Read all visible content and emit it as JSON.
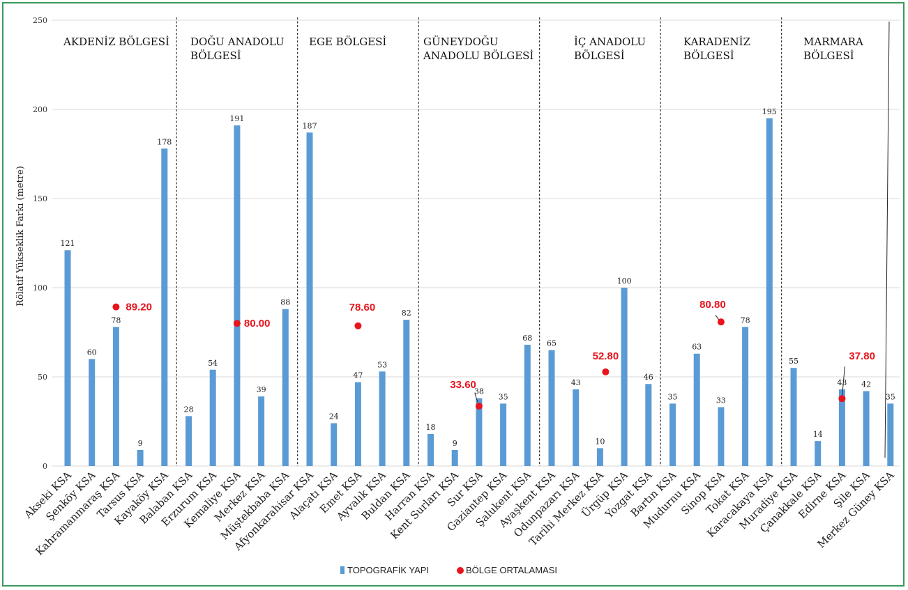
{
  "chart_data": {
    "type": "bar",
    "ylabel": "Rölatif Yükseklik Farkı (metre)",
    "xlabel": "",
    "ylim": [
      0,
      250
    ],
    "yticks": [
      0,
      50,
      100,
      150,
      200,
      250
    ],
    "grid": true,
    "legend_position": "bottom",
    "colors": {
      "bar": "#5b9bd5",
      "avg": "#e8141c",
      "divider": "#333333"
    },
    "categories": [
      "Akseki KSA",
      "Şenköy KSA",
      "Kahramanmaraş KSA",
      "Tarsus KSA",
      "Kayaköy KSA",
      "Balaban KSA",
      "Erzurum KSA",
      "Kemaliye KSA",
      "Merkez KSA",
      "Müştekbaba KSA",
      "Afyonkarahisar KSA",
      "Alaçatı KSA",
      "Emet KSA",
      "Ayvalık KSA",
      "Buldan KSA",
      "Harran KSA",
      "Kent Surları KSA",
      "Sur KSA",
      "Gaziantep KSA",
      "Şalukent KSA",
      "Ayaşkent KSA",
      "Odunpazarı KSA",
      "Tarihi Merkez KSA",
      "Ürgüp KSA",
      "Yozgat KSA",
      "Bartın KSA",
      "Mudurnu KSA",
      "Sinop KSA",
      "Tokat KSA",
      "Karacakaya KSA",
      "Muradiye KSA",
      "Çanakkale KSA",
      "Edirne KSA",
      "Şile KSA",
      "Merkez Güney KSA"
    ],
    "series": [
      {
        "name": "TOPOGRAFİK YAPI",
        "values": [
          121,
          60,
          78,
          9,
          178,
          28,
          54,
          191,
          39,
          88,
          187,
          24,
          47,
          53,
          82,
          18,
          9,
          38,
          35,
          68,
          65,
          43,
          10,
          100,
          46,
          35,
          63,
          33,
          78,
          195,
          55,
          14,
          43,
          42,
          35
        ]
      }
    ],
    "value_labels": [
      "121",
      "60",
      "78",
      "9",
      "178",
      "28",
      "54",
      "191",
      "39",
      "88",
      "187",
      "24",
      "47",
      "53",
      "82",
      "18",
      "9",
      "38",
      "35",
      "68",
      "65",
      "43",
      "10",
      "100",
      "46",
      "35",
      "63",
      "33",
      "78",
      "195",
      "55",
      "14",
      "43",
      "42",
      "35"
    ],
    "regions": [
      {
        "label": "AKDENİZ BÖLGESİ",
        "lines": [
          "AKDENİZ BÖLGESİ"
        ],
        "start": 0,
        "end": 4,
        "average": 89.2,
        "average_label": "89.20"
      },
      {
        "label": "DOĞU ANADOLU BÖLGESİ",
        "lines": [
          "DOĞU ANADOLU",
          "BÖLGESİ"
        ],
        "start": 5,
        "end": 9,
        "average": 80.0,
        "average_label": "80.00"
      },
      {
        "label": "EGE BÖLGESİ",
        "lines": [
          "EGE BÖLGESİ"
        ],
        "start": 10,
        "end": 14,
        "average": 78.6,
        "average_label": "78.60"
      },
      {
        "label": "GÜNEYDOĞU ANADOLU BÖLGESİ",
        "lines": [
          "GÜNEYDOĞU",
          "ANADOLU BÖLGESİ"
        ],
        "start": 15,
        "end": 19,
        "average": 33.6,
        "average_label": "33.60"
      },
      {
        "label": "İÇ ANADOLU BÖLGESİ",
        "lines": [
          "İÇ ANADOLU",
          "BÖLGESİ"
        ],
        "start": 20,
        "end": 24,
        "average": 52.8,
        "average_label": "52.80"
      },
      {
        "label": "KARADENİZ BÖLGESİ",
        "lines": [
          "KARADENİZ",
          "BÖLGESİ"
        ],
        "start": 25,
        "end": 29,
        "average": 80.8,
        "average_label": "80.80"
      },
      {
        "label": "MARMARA BÖLGESİ",
        "lines": [
          "MARMARA",
          "BÖLGESİ"
        ],
        "start": 30,
        "end": 34,
        "average": 37.8,
        "average_label": "37.80"
      }
    ],
    "legend": [
      {
        "label": "TOPOGRAFİK YAPI",
        "marker": "bar"
      },
      {
        "label": "BÖLGE ORTALAMASI",
        "marker": "dot"
      }
    ]
  }
}
